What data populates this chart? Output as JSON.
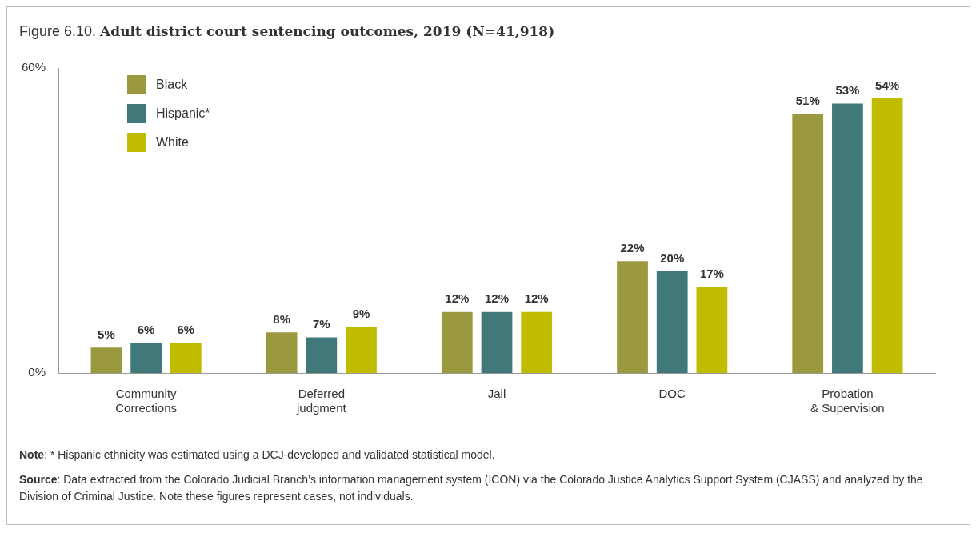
{
  "chart_data": {
    "type": "bar",
    "title": "Figure 6.10. Adult district court sentencing outcomes, 2019 (N=41,918)",
    "categories": [
      "Community Corrections",
      "Deferred judgment",
      "Jail",
      "DOC",
      "Probation & Supervision"
    ],
    "series": [
      {
        "name": "Black",
        "color": "#9a993f",
        "values": [
          5,
          8,
          12,
          22,
          51
        ],
        "value_labels": [
          "5%",
          "8%",
          "12%",
          "22%",
          "51%"
        ]
      },
      {
        "name": "Hispanic*",
        "color": "#41797b",
        "values": [
          6,
          7,
          12,
          20,
          53
        ],
        "value_labels": [
          "6%",
          "7%",
          "12%",
          "20%",
          "53%"
        ]
      },
      {
        "name": "White",
        "color": "#c1bc00",
        "values": [
          6,
          9,
          12,
          17,
          54
        ],
        "value_labels": [
          "6%",
          "9%",
          "12%",
          "17%",
          "54%"
        ]
      }
    ],
    "ylim": [
      0,
      60
    ],
    "yticks": [
      {
        "value": 0,
        "label": "0%"
      },
      {
        "value": 60,
        "label": "60%"
      }
    ],
    "grid": false,
    "legend": "top left",
    "annotations": [
      "Note: * Hispanic ethnicity was estimated using a DCJ-developed and validated statistical model.",
      "Source: Data extracted from the Colorado Judicial Branch’s information management system (ICON) via the Colorado Justice Analytics Support System (CJASS) and analyzed by the Division of Criminal Justice. Note these figures represent cases, not individuals."
    ]
  }
}
